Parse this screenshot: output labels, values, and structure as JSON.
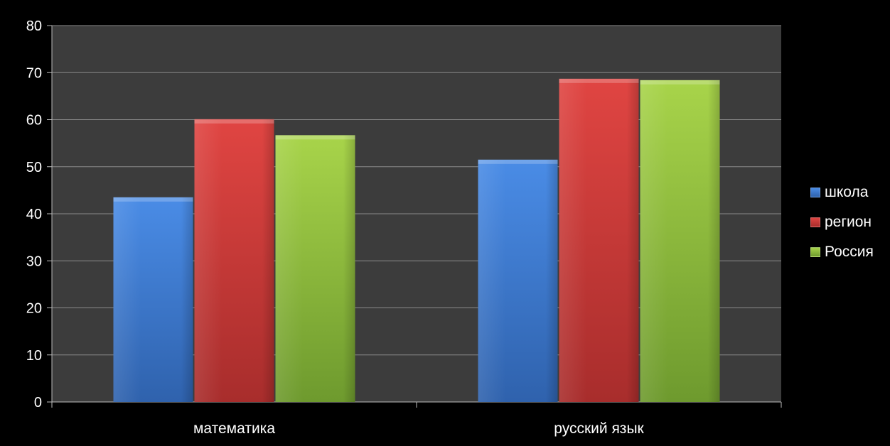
{
  "chart_data": {
    "type": "bar",
    "categories": [
      "математика",
      "русский язык"
    ],
    "series": [
      {
        "name": "школа",
        "color": "#3f7fd6",
        "values": [
          43.5,
          51.5
        ]
      },
      {
        "name": "регион",
        "color": "#d63c3a",
        "values": [
          60.1,
          68.7
        ]
      },
      {
        "name": "Россия",
        "color": "#9bc43c",
        "values": [
          56.7,
          68.4
        ]
      }
    ],
    "ylim": [
      0,
      80
    ],
    "yticks": [
      "0",
      "10",
      "20",
      "30",
      "40",
      "50",
      "60",
      "70",
      "80"
    ],
    "grid": true,
    "legend_position": "right",
    "plot_background": "#3c3c3c",
    "background": "#000000"
  }
}
